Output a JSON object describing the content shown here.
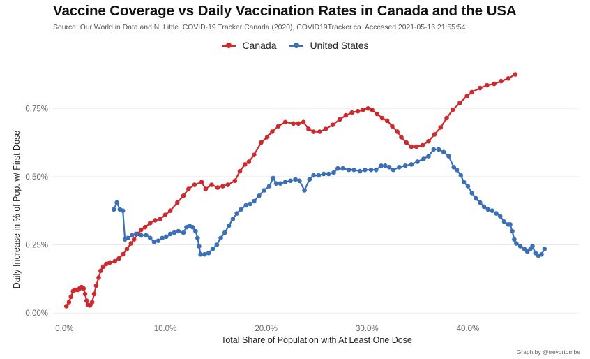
{
  "chart_data": {
    "type": "line",
    "title": "Vaccine Coverage vs Daily Vaccination Rates in Canada and the USA",
    "subtitle": "Source: Our World in Data and N. Little. COVID-19 Tracker Canada (2020), COVID19Tracker.ca. Accessed 2021-05-16 21:55:54",
    "xlabel": "Total Share of Population with At Least One Dose",
    "ylabel": "Daily Increase in % of Pop. w/ First Dose",
    "caption": "Graph by @trevortombe",
    "xlim": [
      -1.2,
      51
    ],
    "ylim": [
      -0.02,
      0.93
    ],
    "x_ticks": [
      0,
      10,
      20,
      30,
      40
    ],
    "x_tick_labels": [
      "0.0%",
      "10.0%",
      "20.0%",
      "30.0%",
      "40.0%"
    ],
    "y_ticks": [
      0,
      0.25,
      0.5,
      0.75
    ],
    "y_tick_labels": [
      "0.00%",
      "0.25%",
      "0.50%",
      "0.75%"
    ],
    "grid": true,
    "legend_position": "top",
    "series": [
      {
        "name": "Canada",
        "color": "#CB2A2F",
        "points": [
          [
            0.2,
            0.025
          ],
          [
            0.45,
            0.04
          ],
          [
            0.65,
            0.06
          ],
          [
            0.85,
            0.08
          ],
          [
            1.05,
            0.085
          ],
          [
            1.3,
            0.085
          ],
          [
            1.5,
            0.09
          ],
          [
            1.7,
            0.095
          ],
          [
            1.9,
            0.09
          ],
          [
            2.05,
            0.07
          ],
          [
            2.2,
            0.045
          ],
          [
            2.35,
            0.03
          ],
          [
            2.55,
            0.028
          ],
          [
            2.75,
            0.04
          ],
          [
            2.95,
            0.07
          ],
          [
            3.15,
            0.1
          ],
          [
            3.4,
            0.13
          ],
          [
            3.6,
            0.155
          ],
          [
            3.85,
            0.17
          ],
          [
            4.15,
            0.18
          ],
          [
            4.5,
            0.185
          ],
          [
            5.0,
            0.19
          ],
          [
            5.4,
            0.2
          ],
          [
            5.8,
            0.215
          ],
          [
            6.2,
            0.235
          ],
          [
            6.6,
            0.255
          ],
          [
            6.9,
            0.27
          ],
          [
            7.3,
            0.29
          ],
          [
            7.6,
            0.305
          ],
          [
            8.0,
            0.315
          ],
          [
            8.5,
            0.33
          ],
          [
            9.0,
            0.34
          ],
          [
            9.5,
            0.345
          ],
          [
            10.0,
            0.36
          ],
          [
            10.5,
            0.375
          ],
          [
            11.2,
            0.405
          ],
          [
            11.8,
            0.43
          ],
          [
            12.3,
            0.455
          ],
          [
            12.9,
            0.47
          ],
          [
            13.6,
            0.48
          ],
          [
            14.0,
            0.455
          ],
          [
            14.6,
            0.47
          ],
          [
            15.2,
            0.46
          ],
          [
            15.7,
            0.465
          ],
          [
            16.2,
            0.47
          ],
          [
            16.9,
            0.485
          ],
          [
            17.4,
            0.52
          ],
          [
            17.9,
            0.545
          ],
          [
            18.3,
            0.555
          ],
          [
            18.8,
            0.58
          ],
          [
            19.5,
            0.625
          ],
          [
            20.1,
            0.645
          ],
          [
            20.6,
            0.665
          ],
          [
            21.2,
            0.685
          ],
          [
            21.9,
            0.7
          ],
          [
            22.7,
            0.695
          ],
          [
            23.2,
            0.695
          ],
          [
            23.7,
            0.7
          ],
          [
            24.2,
            0.675
          ],
          [
            24.7,
            0.665
          ],
          [
            25.3,
            0.665
          ],
          [
            25.9,
            0.675
          ],
          [
            26.6,
            0.69
          ],
          [
            27.3,
            0.71
          ],
          [
            27.9,
            0.725
          ],
          [
            28.5,
            0.735
          ],
          [
            29.1,
            0.74
          ],
          [
            29.6,
            0.745
          ],
          [
            30.1,
            0.75
          ],
          [
            30.5,
            0.745
          ],
          [
            31.0,
            0.73
          ],
          [
            31.5,
            0.715
          ],
          [
            32.0,
            0.705
          ],
          [
            32.5,
            0.685
          ],
          [
            33.0,
            0.665
          ],
          [
            33.4,
            0.645
          ],
          [
            33.9,
            0.625
          ],
          [
            34.4,
            0.61
          ],
          [
            34.9,
            0.61
          ],
          [
            35.5,
            0.615
          ],
          [
            36.1,
            0.63
          ],
          [
            36.7,
            0.655
          ],
          [
            37.3,
            0.68
          ],
          [
            37.9,
            0.715
          ],
          [
            38.5,
            0.745
          ],
          [
            39.2,
            0.77
          ],
          [
            39.9,
            0.795
          ],
          [
            40.4,
            0.81
          ],
          [
            41.2,
            0.825
          ],
          [
            41.9,
            0.835
          ],
          [
            42.6,
            0.84
          ],
          [
            43.3,
            0.85
          ],
          [
            44.0,
            0.86
          ],
          [
            44.7,
            0.875
          ]
        ]
      },
      {
        "name": "United States",
        "color": "#3B6FB6",
        "points": [
          [
            4.9,
            0.38
          ],
          [
            5.2,
            0.405
          ],
          [
            5.5,
            0.38
          ],
          [
            5.8,
            0.375
          ],
          [
            6.0,
            0.27
          ],
          [
            6.3,
            0.275
          ],
          [
            6.7,
            0.285
          ],
          [
            7.1,
            0.29
          ],
          [
            7.6,
            0.285
          ],
          [
            8.1,
            0.285
          ],
          [
            8.5,
            0.275
          ],
          [
            8.9,
            0.26
          ],
          [
            9.3,
            0.265
          ],
          [
            9.7,
            0.275
          ],
          [
            10.1,
            0.28
          ],
          [
            10.5,
            0.29
          ],
          [
            10.9,
            0.295
          ],
          [
            11.3,
            0.3
          ],
          [
            11.8,
            0.295
          ],
          [
            12.1,
            0.315
          ],
          [
            12.4,
            0.32
          ],
          [
            12.7,
            0.315
          ],
          [
            13.0,
            0.3
          ],
          [
            13.2,
            0.275
          ],
          [
            13.35,
            0.245
          ],
          [
            13.5,
            0.215
          ],
          [
            13.9,
            0.215
          ],
          [
            14.3,
            0.22
          ],
          [
            14.7,
            0.235
          ],
          [
            15.1,
            0.25
          ],
          [
            15.5,
            0.275
          ],
          [
            15.9,
            0.295
          ],
          [
            16.3,
            0.32
          ],
          [
            16.7,
            0.345
          ],
          [
            17.1,
            0.365
          ],
          [
            17.5,
            0.38
          ],
          [
            18.0,
            0.395
          ],
          [
            18.4,
            0.4
          ],
          [
            18.8,
            0.41
          ],
          [
            19.3,
            0.43
          ],
          [
            19.8,
            0.45
          ],
          [
            20.3,
            0.465
          ],
          [
            20.7,
            0.495
          ],
          [
            21.0,
            0.475
          ],
          [
            21.4,
            0.475
          ],
          [
            21.9,
            0.48
          ],
          [
            22.4,
            0.485
          ],
          [
            22.9,
            0.49
          ],
          [
            23.3,
            0.485
          ],
          [
            23.8,
            0.45
          ],
          [
            24.3,
            0.49
          ],
          [
            24.7,
            0.505
          ],
          [
            25.2,
            0.505
          ],
          [
            25.7,
            0.51
          ],
          [
            26.2,
            0.51
          ],
          [
            26.7,
            0.515
          ],
          [
            27.1,
            0.53
          ],
          [
            27.6,
            0.53
          ],
          [
            28.2,
            0.525
          ],
          [
            28.7,
            0.525
          ],
          [
            29.3,
            0.52
          ],
          [
            29.8,
            0.525
          ],
          [
            30.4,
            0.525
          ],
          [
            30.9,
            0.525
          ],
          [
            31.4,
            0.54
          ],
          [
            31.8,
            0.54
          ],
          [
            32.2,
            0.535
          ],
          [
            32.6,
            0.525
          ],
          [
            33.2,
            0.535
          ],
          [
            33.8,
            0.54
          ],
          [
            34.4,
            0.545
          ],
          [
            35.0,
            0.555
          ],
          [
            35.6,
            0.565
          ],
          [
            36.1,
            0.575
          ],
          [
            36.6,
            0.6
          ],
          [
            37.1,
            0.6
          ],
          [
            37.6,
            0.59
          ],
          [
            38.1,
            0.575
          ],
          [
            38.6,
            0.535
          ],
          [
            38.9,
            0.525
          ],
          [
            39.3,
            0.505
          ],
          [
            39.6,
            0.48
          ],
          [
            40.0,
            0.465
          ],
          [
            40.4,
            0.44
          ],
          [
            40.8,
            0.42
          ],
          [
            41.2,
            0.405
          ],
          [
            41.6,
            0.39
          ],
          [
            42.0,
            0.38
          ],
          [
            42.4,
            0.375
          ],
          [
            42.8,
            0.365
          ],
          [
            43.2,
            0.355
          ],
          [
            43.6,
            0.335
          ],
          [
            44.0,
            0.325
          ],
          [
            44.2,
            0.325
          ],
          [
            44.4,
            0.3
          ],
          [
            44.6,
            0.27
          ],
          [
            44.8,
            0.255
          ],
          [
            45.2,
            0.245
          ],
          [
            45.6,
            0.235
          ],
          [
            45.9,
            0.225
          ],
          [
            46.2,
            0.235
          ],
          [
            46.4,
            0.245
          ],
          [
            46.7,
            0.22
          ],
          [
            47.0,
            0.21
          ],
          [
            47.3,
            0.215
          ],
          [
            47.6,
            0.235
          ]
        ]
      }
    ]
  }
}
